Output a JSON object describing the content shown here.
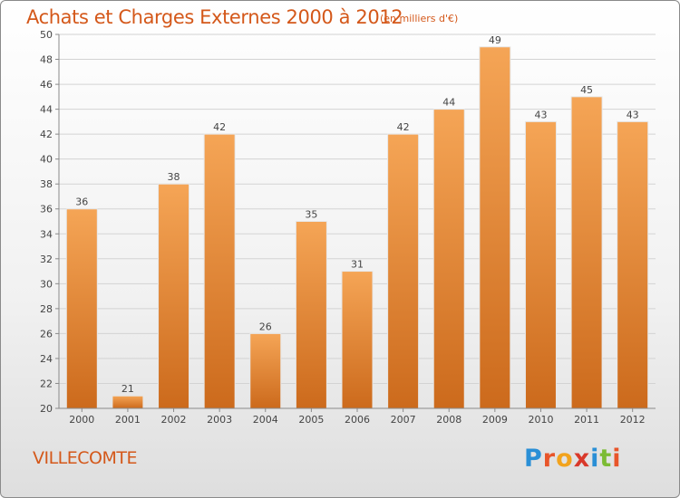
{
  "header": {
    "title": "Achats et Charges Externes 2000 à 2012",
    "subtitle": "(en milliers d'€)"
  },
  "footer": {
    "place": "VILLECOMTE",
    "logo_letters": [
      {
        "ch": "P",
        "color": "#2a8fd6"
      },
      {
        "ch": "r",
        "color": "#e8552a"
      },
      {
        "ch": "o",
        "color": "#f2a31d"
      },
      {
        "ch": "x",
        "color": "#d9392b"
      },
      {
        "ch": "i",
        "color": "#2a8fd6"
      },
      {
        "ch": "t",
        "color": "#7cbb34"
      },
      {
        "ch": "i",
        "color": "#e8552a"
      }
    ]
  },
  "colors": {
    "bar_top": "#f5a556",
    "bar_bottom": "#cc6a1c",
    "accent": "#d4581a"
  },
  "chart_data": {
    "type": "bar",
    "categories": [
      "2000",
      "2001",
      "2002",
      "2003",
      "2004",
      "2005",
      "2006",
      "2007",
      "2008",
      "2009",
      "2010",
      "2011",
      "2012"
    ],
    "values": [
      36,
      21,
      38,
      42,
      26,
      35,
      31,
      42,
      44,
      49,
      43,
      45,
      43
    ],
    "ylim": [
      20,
      50
    ],
    "yticks": [
      20,
      22,
      24,
      26,
      28,
      30,
      32,
      34,
      36,
      38,
      40,
      42,
      44,
      46,
      48,
      50
    ],
    "grid": true
  }
}
